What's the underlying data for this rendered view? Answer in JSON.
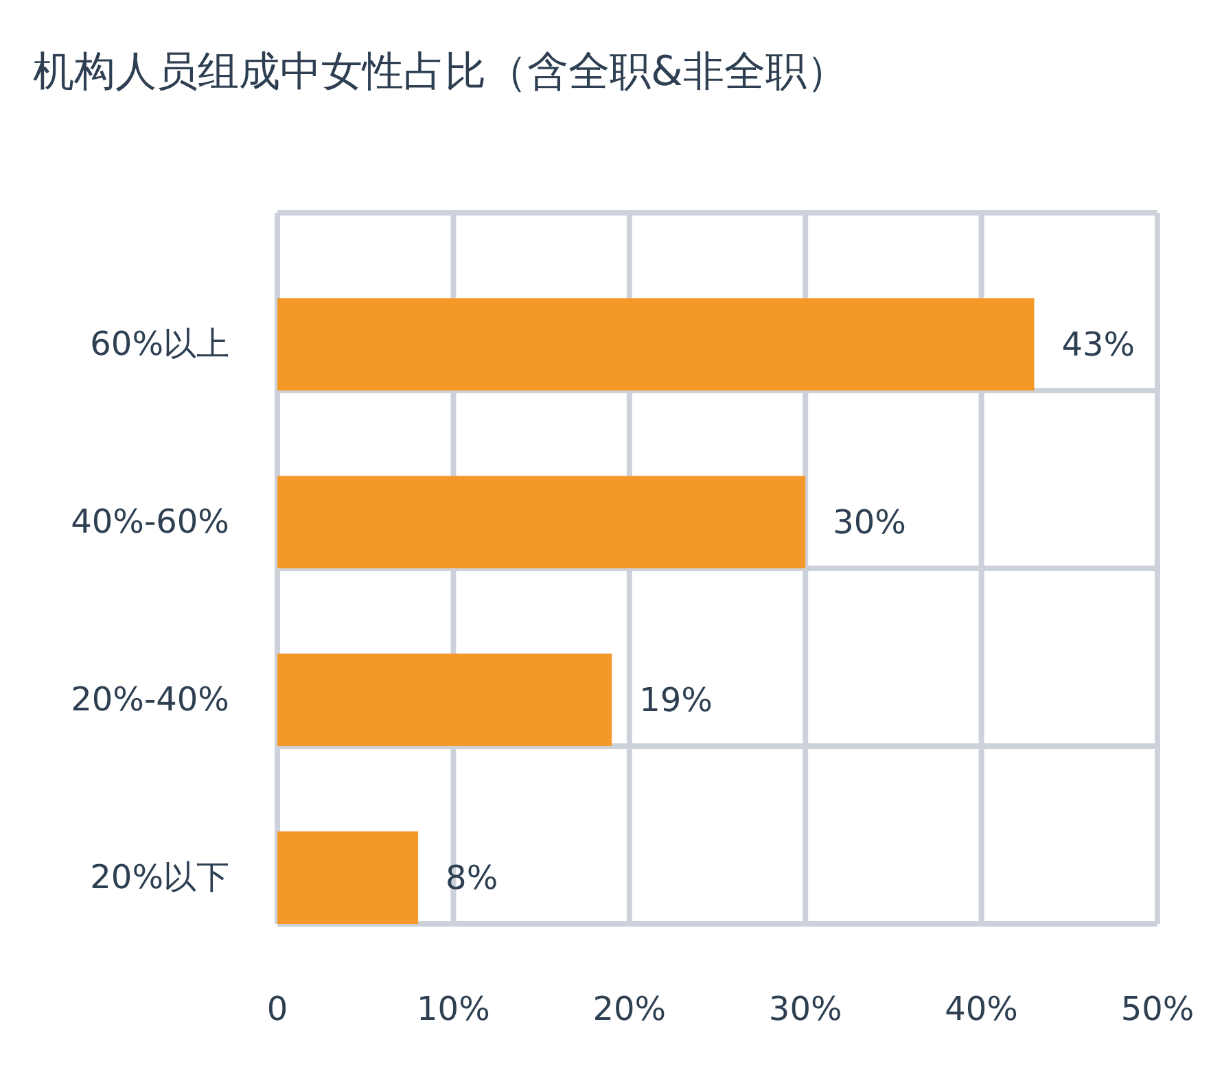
{
  "chart_data": {
    "type": "bar",
    "orientation": "horizontal",
    "title": "机构人员组成中女性占比（含全职&非全职）",
    "categories": [
      "60%以上",
      "40%-60%",
      "20%-40%",
      "20%以下"
    ],
    "values": [
      43,
      30,
      19,
      8
    ],
    "value_labels": [
      "43%",
      "30%",
      "19%",
      "8%"
    ],
    "color": "#f5982a",
    "xlim": [
      0,
      50
    ],
    "xticks": [
      0,
      {
        "value": 10,
        "label": "10%"
      },
      {
        "value": 20,
        "label": "20%"
      },
      {
        "value": 30,
        "label": "30%"
      },
      {
        "value": 40,
        "label": "40%"
      },
      {
        "value": 50,
        "label": "50%"
      }
    ],
    "grid": true
  }
}
